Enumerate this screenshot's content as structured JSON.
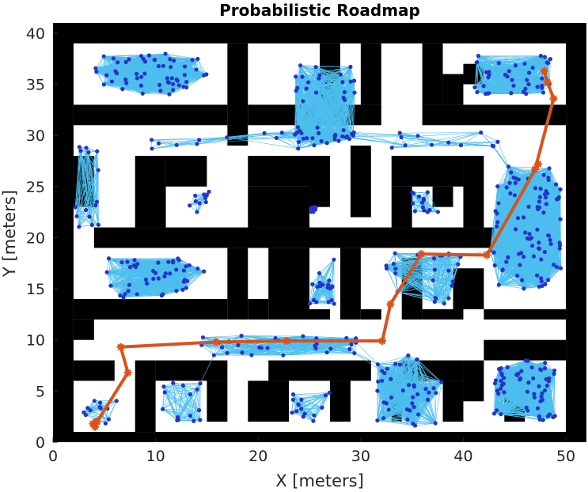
{
  "chart_data": {
    "type": "scatter",
    "title": "Probabilistic Roadmap",
    "xlabel": "X [meters]",
    "ylabel": "Y [meters]",
    "xlim": [
      0,
      52
    ],
    "ylim": [
      0,
      41
    ],
    "xticks": [
      0,
      10,
      20,
      30,
      40,
      50
    ],
    "yticks": [
      0,
      5,
      10,
      15,
      20,
      25,
      30,
      35,
      40
    ],
    "grid": false,
    "colors": {
      "obstacle": "#000000",
      "free_space": "#ffffff",
      "edges": "#4dbeee",
      "nodes": "#2633c9",
      "path": "#d95319"
    },
    "obstacles": [
      [
        0,
        0,
        2,
        41
      ],
      [
        50,
        0,
        2,
        41
      ],
      [
        0,
        0,
        52,
        1
      ],
      [
        0,
        39,
        52,
        2
      ],
      [
        2,
        31,
        15,
        2
      ],
      [
        17,
        29,
        2,
        10
      ],
      [
        19,
        31,
        13,
        2
      ],
      [
        30,
        33,
        2,
        6
      ],
      [
        26,
        33,
        2,
        6
      ],
      [
        36,
        31,
        14,
        2
      ],
      [
        36,
        33,
        2,
        6
      ],
      [
        38,
        33,
        2,
        3
      ],
      [
        40,
        35,
        2,
        2
      ],
      [
        2,
        23,
        2,
        5
      ],
      [
        8,
        21,
        3,
        7
      ],
      [
        11,
        25,
        4,
        3
      ],
      [
        19,
        21,
        6,
        4
      ],
      [
        19,
        25,
        8,
        3
      ],
      [
        29,
        22,
        2,
        7
      ],
      [
        25,
        23,
        2,
        5
      ],
      [
        33,
        25,
        7,
        3
      ],
      [
        33,
        21,
        2,
        4
      ],
      [
        37,
        23,
        2,
        2
      ],
      [
        40,
        21,
        2,
        7
      ],
      [
        4,
        19,
        38,
        2
      ],
      [
        42,
        19,
        2,
        2
      ],
      [
        17,
        12,
        2,
        7
      ],
      [
        21,
        12,
        4,
        7
      ],
      [
        2,
        12,
        15,
        2
      ],
      [
        19,
        12,
        2,
        2
      ],
      [
        25,
        12,
        2,
        1
      ],
      [
        28,
        12,
        2,
        7
      ],
      [
        30,
        12,
        2,
        1
      ],
      [
        34,
        12,
        2,
        6
      ],
      [
        36,
        12,
        4,
        1
      ],
      [
        39,
        13,
        3,
        4
      ],
      [
        42,
        12,
        8,
        1
      ],
      [
        2,
        10,
        2,
        2
      ],
      [
        2,
        6,
        4,
        2
      ],
      [
        8,
        1,
        2,
        7
      ],
      [
        10,
        6,
        7,
        2
      ],
      [
        15,
        2,
        2,
        4
      ],
      [
        19,
        2,
        4,
        4
      ],
      [
        21,
        6,
        10,
        2
      ],
      [
        27,
        2,
        2,
        4
      ],
      [
        33,
        2,
        1,
        4
      ],
      [
        34,
        6,
        6,
        2
      ],
      [
        38,
        2,
        2,
        4
      ],
      [
        40,
        4,
        2,
        4
      ],
      [
        42,
        8,
        8,
        2
      ],
      [
        44,
        2,
        2,
        4
      ]
    ],
    "node_clusters": [
      {
        "cx": 9.5,
        "cy": 36,
        "sx": 5.5,
        "sy": 2,
        "n": 55
      },
      {
        "cx": 14.5,
        "cy": 23.5,
        "sx": 1.2,
        "sy": 1,
        "n": 10
      },
      {
        "cx": 3,
        "cy": 25,
        "sx": 1.5,
        "sy": 4,
        "n": 15
      },
      {
        "cx": 10,
        "cy": 16,
        "sx": 5,
        "sy": 2,
        "n": 45
      },
      {
        "cx": 26.5,
        "cy": 33,
        "sx": 3,
        "sy": 4,
        "n": 40
      },
      {
        "cx": 23,
        "cy": 23.5,
        "sx": 2.8,
        "sy": 1,
        "n": 15
      },
      {
        "cx": 36,
        "cy": 23.5,
        "sx": 2,
        "sy": 1,
        "n": 15
      },
      {
        "cx": 45,
        "cy": 36,
        "sx": 4,
        "sy": 2,
        "n": 40
      },
      {
        "cx": 46,
        "cy": 21,
        "sx": 3.5,
        "sy": 6,
        "n": 90
      },
      {
        "cx": 24.5,
        "cy": 16,
        "sx": 3,
        "sy": 2.5,
        "n": 20
      },
      {
        "cx": 36,
        "cy": 16,
        "sx": 4,
        "sy": 2.5,
        "n": 25
      },
      {
        "cx": 22,
        "cy": 9.5,
        "sx": 8,
        "sy": 1,
        "n": 30
      },
      {
        "cx": 13,
        "cy": 4,
        "sx": 3,
        "sy": 2,
        "n": 15
      },
      {
        "cx": 23.5,
        "cy": 3.5,
        "sx": 4,
        "sy": 1.5,
        "n": 15
      },
      {
        "cx": 35,
        "cy": 5,
        "sx": 3.5,
        "sy": 3.5,
        "n": 40
      },
      {
        "cx": 46,
        "cy": 5,
        "sx": 3,
        "sy": 3,
        "n": 60
      },
      {
        "cx": 5,
        "cy": 3,
        "sx": 2,
        "sy": 1.2,
        "n": 12
      },
      {
        "cx": 22,
        "cy": 29.5,
        "sx": 14,
        "sy": 0.8,
        "n": 20
      },
      {
        "cx": 39,
        "cy": 29.5,
        "sx": 6,
        "sy": 0.8,
        "n": 10
      }
    ],
    "path": {
      "x": [
        4.2,
        3.9,
        4.1,
        4.3,
        7.3,
        6.6,
        15.9,
        22.8,
        32.1,
        32.9,
        35.9,
        42.3,
        47.3,
        47.0,
        48.8,
        48.2,
        47.9
      ],
      "y": [
        2.0,
        1.8,
        1.5,
        2.0,
        6.8,
        9.3,
        9.8,
        9.9,
        9.9,
        13.5,
        18.4,
        18.3,
        27.2,
        26.7,
        33.6,
        35.2,
        36.3
      ]
    }
  }
}
